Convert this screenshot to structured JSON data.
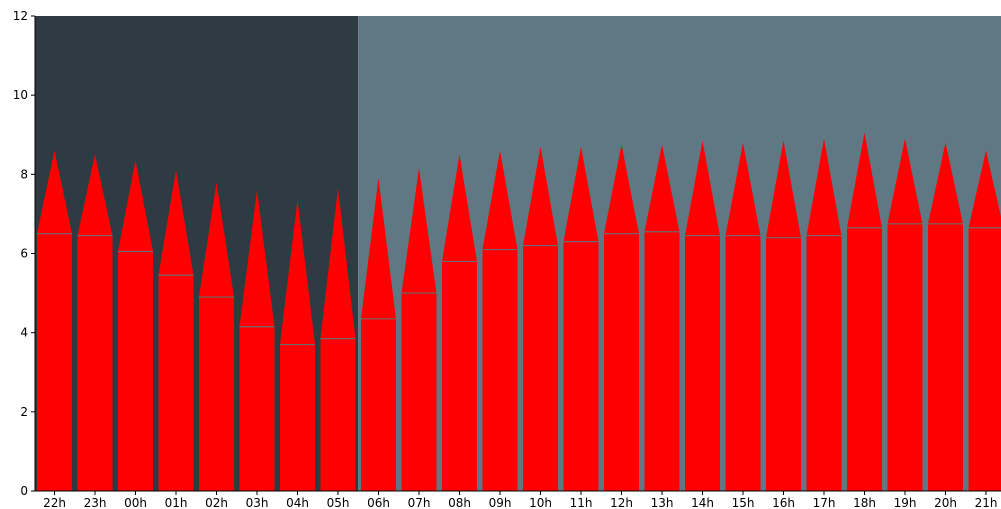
{
  "chart_data": {
    "type": "bar",
    "title": "",
    "xlabel": "",
    "ylabel": "",
    "ylim": [
      0,
      12
    ],
    "yticks": [
      0,
      2,
      4,
      6,
      8,
      10,
      12
    ],
    "grid": false,
    "categories": [
      "22h",
      "23h",
      "00h",
      "01h",
      "02h",
      "03h",
      "04h",
      "05h",
      "06h",
      "07h",
      "08h",
      "09h",
      "10h",
      "11h",
      "12h",
      "13h",
      "14h",
      "15h",
      "16h",
      "17h",
      "18h",
      "19h",
      "20h",
      "21h"
    ],
    "series": [
      {
        "values": [
          6.5,
          6.45,
          6.05,
          5.45,
          4.9,
          4.15,
          3.7,
          3.85,
          4.35,
          5.0,
          5.8,
          6.1,
          6.2,
          6.3,
          6.5,
          6.55,
          6.45,
          6.45,
          6.4,
          6.45,
          6.65,
          6.75,
          6.75,
          6.65
        ]
      },
      {
        "values": [
          8.6,
          8.5,
          8.35,
          8.1,
          7.8,
          7.6,
          7.35,
          7.65,
          7.9,
          8.15,
          8.5,
          8.6,
          8.7,
          8.7,
          8.75,
          8.75,
          8.85,
          8.8,
          8.85,
          8.9,
          9.05,
          8.9,
          8.8,
          8.6
        ]
      }
    ],
    "background_regions": [
      {
        "from_category": "22h",
        "to_category": "05h",
        "color": "#2f3b42"
      },
      {
        "from_category": "06h",
        "to_category": "21h",
        "color": "#5f7884"
      }
    ],
    "colors": {
      "bar": "#ff0000",
      "divider": "#6b6b6b",
      "axis": "#000000"
    }
  }
}
